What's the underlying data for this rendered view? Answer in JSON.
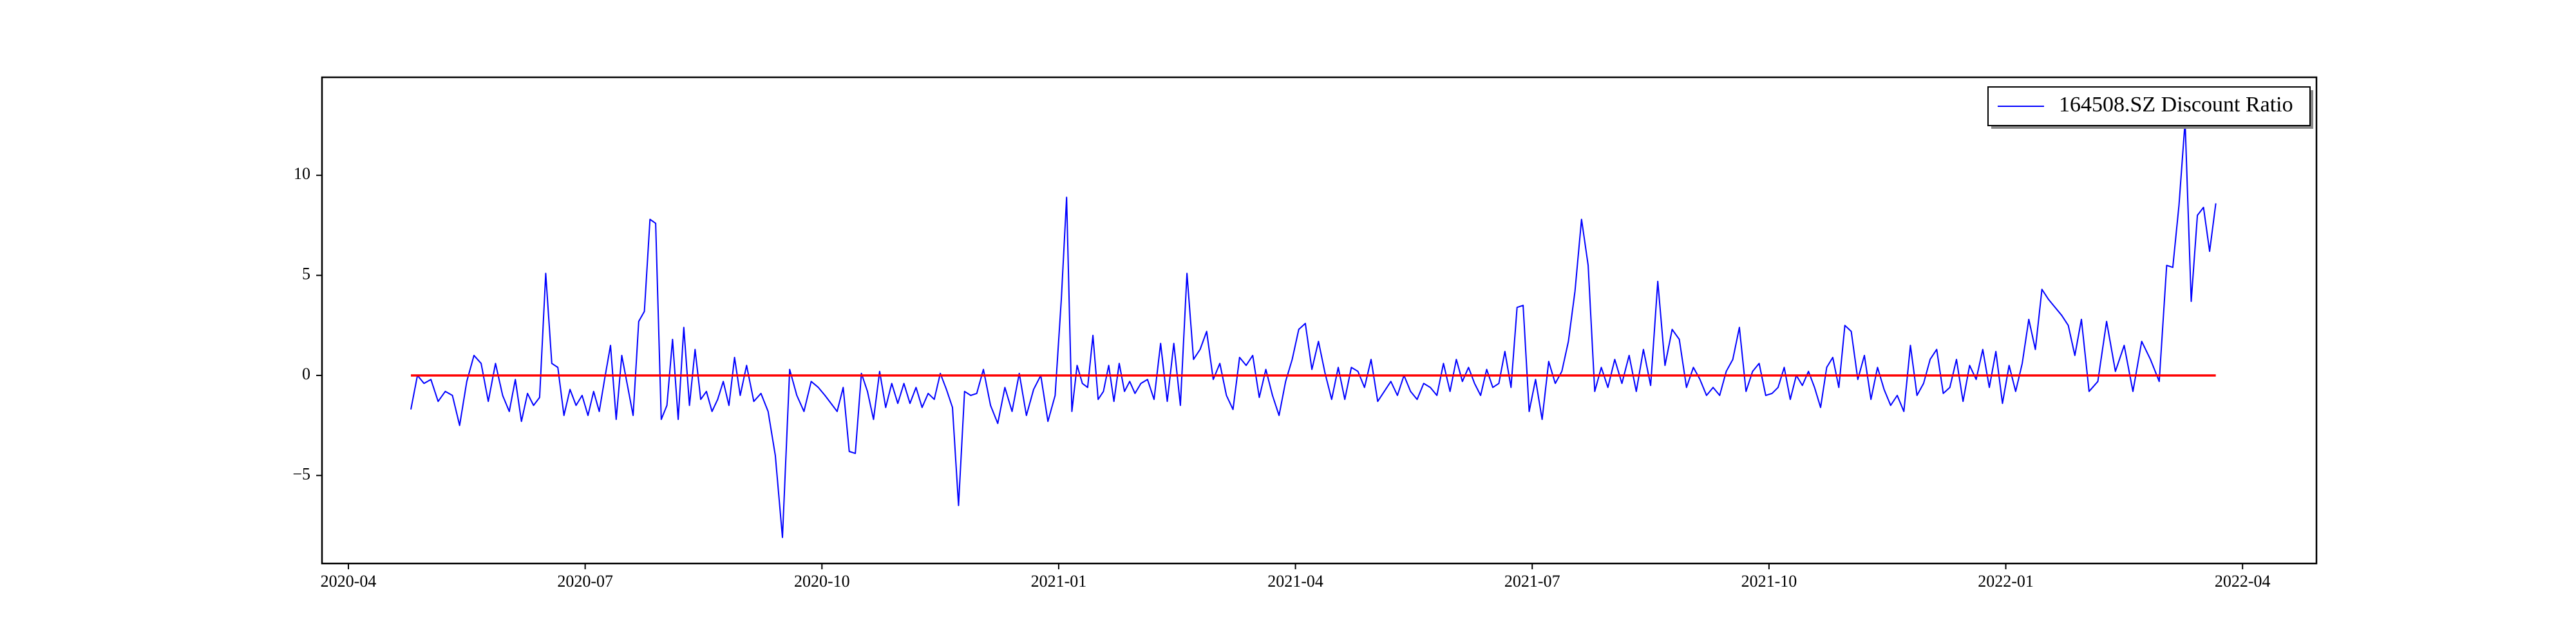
{
  "chart_data": {
    "type": "line",
    "x": [
      "2020-04",
      "2020-04",
      "2020-04",
      "2020-05",
      "2020-05",
      "2020-05",
      "2020-05",
      "2020-05",
      "2020-05",
      "2020-05",
      "2020-05",
      "2020-05",
      "2020-05",
      "2020-05",
      "2020-06",
      "2020-06",
      "2020-06",
      "2020-06",
      "2020-06",
      "2020-06",
      "2020-06",
      "2020-06",
      "2020-06",
      "2020-06",
      "2020-06",
      "2020-06",
      "2020-06",
      "2020-07",
      "2020-07",
      "2020-07",
      "2020-07",
      "2020-07",
      "2020-07",
      "2020-07",
      "2020-07",
      "2020-07",
      "2020-07",
      "2020-07",
      "2020-07",
      "2020-07",
      "2020-07",
      "2020-08",
      "2020-08",
      "2020-08",
      "2020-08",
      "2020-08",
      "2020-08",
      "2020-08",
      "2020-08",
      "2020-08",
      "2020-08",
      "2020-08",
      "2020-08",
      "2020-08",
      "2020-08",
      "2020-09",
      "2020-09",
      "2020-09",
      "2020-09",
      "2020-09",
      "2020-09",
      "2020-09",
      "2020-09",
      "2020-09",
      "2020-09",
      "2020-09",
      "2020-10",
      "2020-10",
      "2020-10",
      "2020-10",
      "2020-10",
      "2020-10",
      "2020-10",
      "2020-10",
      "2020-10",
      "2020-10",
      "2020-10",
      "2020-10",
      "2020-10",
      "2020-11",
      "2020-11",
      "2020-11",
      "2020-11",
      "2020-11",
      "2020-11",
      "2020-11",
      "2020-11",
      "2020-11",
      "2020-11",
      "2020-11",
      "2020-11",
      "2020-11",
      "2020-12",
      "2020-12",
      "2020-12",
      "2020-12",
      "2020-12",
      "2020-12",
      "2020-12",
      "2020-12",
      "2020-12",
      "2020-12",
      "2020-12",
      "2021-01",
      "2021-01",
      "2021-01",
      "2021-01",
      "2021-01",
      "2021-01",
      "2021-01",
      "2021-01",
      "2021-01",
      "2021-01",
      "2021-01",
      "2021-01",
      "2021-01",
      "2021-01",
      "2021-01",
      "2021-02",
      "2021-02",
      "2021-02",
      "2021-02",
      "2021-02",
      "2021-02",
      "2021-02",
      "2021-02",
      "2021-02",
      "2021-02",
      "2021-02",
      "2021-02",
      "2021-03",
      "2021-03",
      "2021-03",
      "2021-03",
      "2021-03",
      "2021-03",
      "2021-03",
      "2021-03",
      "2021-03",
      "2021-03",
      "2021-03",
      "2021-03",
      "2021-04",
      "2021-04",
      "2021-04",
      "2021-04",
      "2021-04",
      "2021-04",
      "2021-04",
      "2021-04",
      "2021-04",
      "2021-04",
      "2021-04",
      "2021-04",
      "2021-05",
      "2021-05",
      "2021-05",
      "2021-05",
      "2021-05",
      "2021-05",
      "2021-05",
      "2021-05",
      "2021-05",
      "2021-05",
      "2021-05",
      "2021-05",
      "2021-06",
      "2021-06",
      "2021-06",
      "2021-06",
      "2021-06",
      "2021-06",
      "2021-06",
      "2021-06",
      "2021-06",
      "2021-06",
      "2021-06",
      "2021-06",
      "2021-06",
      "2021-07",
      "2021-07",
      "2021-07",
      "2021-07",
      "2021-07",
      "2021-07",
      "2021-07",
      "2021-07",
      "2021-07",
      "2021-07",
      "2021-07",
      "2021-07",
      "2021-08",
      "2021-08",
      "2021-08",
      "2021-08",
      "2021-08",
      "2021-08",
      "2021-08",
      "2021-08",
      "2021-08",
      "2021-08",
      "2021-08",
      "2021-09",
      "2021-09",
      "2021-09",
      "2021-09",
      "2021-09",
      "2021-09",
      "2021-09",
      "2021-09",
      "2021-09",
      "2021-09",
      "2021-09",
      "2021-09",
      "2021-10",
      "2021-10",
      "2021-10",
      "2021-10",
      "2021-10",
      "2021-10",
      "2021-10",
      "2021-10",
      "2021-10",
      "2021-10",
      "2021-10",
      "2021-10",
      "2021-10",
      "2021-11",
      "2021-11",
      "2021-11",
      "2021-11",
      "2021-11",
      "2021-11",
      "2021-11",
      "2021-11",
      "2021-11",
      "2021-11",
      "2021-11",
      "2021-11",
      "2021-12",
      "2021-12",
      "2021-12",
      "2021-12",
      "2021-12",
      "2021-12",
      "2021-12",
      "2021-12",
      "2021-12",
      "2021-12",
      "2021-12",
      "2021-12",
      "2022-01",
      "2022-01",
      "2022-01",
      "2022-01",
      "2022-01",
      "2022-01",
      "2022-01",
      "2022-01",
      "2022-01",
      "2022-01",
      "2022-01",
      "2022-01",
      "2022-02",
      "2022-02",
      "2022-02",
      "2022-02",
      "2022-02",
      "2022-02",
      "2022-02",
      "2022-02",
      "2022-02",
      "2022-03",
      "2022-03",
      "2022-03",
      "2022-03",
      "2022-03",
      "2022-03",
      "2022-03",
      "2022-03",
      "2022-03"
    ],
    "series": [
      {
        "name": "164508.SZ Discount Ratio",
        "color": "#0000ff",
        "values": [
          -1.7,
          0.0,
          -0.4,
          -0.2,
          -1.3,
          -0.8,
          -1.0,
          -2.5,
          -0.3,
          1.0,
          0.6,
          -1.3,
          0.6,
          -1.0,
          -1.8,
          -0.2,
          -2.3,
          -0.9,
          -1.5,
          -1.1,
          5.1,
          0.6,
          0.4,
          -2.0,
          -0.7,
          -1.5,
          -1.0,
          -2.0,
          -0.8,
          -1.8,
          -0.1,
          1.5,
          -2.2,
          1.0,
          -0.5,
          -2.0,
          2.7,
          3.2,
          7.8,
          7.6,
          -2.2,
          -1.5,
          1.8,
          -2.2,
          2.4,
          -1.5,
          1.3,
          -1.2,
          -0.8,
          -1.8,
          -1.2,
          -0.3,
          -1.5,
          0.9,
          -1.0,
          0.5,
          -1.3,
          -0.9,
          -1.8,
          -4.0,
          -8.1,
          0.3,
          -1.0,
          -1.8,
          -0.3,
          -0.6,
          -1.0,
          -1.4,
          -1.8,
          -0.6,
          -3.8,
          -3.9,
          0.1,
          -0.8,
          -2.2,
          0.2,
          -1.6,
          -0.4,
          -1.4,
          -0.4,
          -1.4,
          -0.6,
          -1.6,
          -0.9,
          -1.2,
          0.1,
          -0.7,
          -1.6,
          -6.5,
          -0.8,
          -1.0,
          -0.9,
          0.3,
          -1.5,
          -2.4,
          -0.6,
          -1.8,
          0.1,
          -2.0,
          -0.7,
          0.0,
          -2.3,
          -1.0,
          3.8,
          8.9,
          -1.8,
          0.5,
          -0.4,
          -0.6,
          2.0,
          -1.2,
          -0.8,
          0.5,
          -1.3,
          0.6,
          -0.8,
          -0.3,
          -0.9,
          -0.4,
          -0.2,
          -1.2,
          1.6,
          -1.3,
          1.6,
          -1.5,
          5.1,
          0.8,
          1.3,
          2.2,
          -0.2,
          0.6,
          -1.0,
          -1.7,
          0.9,
          0.5,
          1.0,
          -1.1,
          0.3,
          -1.0,
          -2.0,
          -0.3,
          0.8,
          2.3,
          2.6,
          0.3,
          1.7,
          0.1,
          -1.2,
          0.4,
          -1.2,
          0.4,
          0.2,
          -0.6,
          0.8,
          -1.3,
          -0.8,
          -0.3,
          -1.0,
          0.0,
          -0.8,
          -1.2,
          -0.4,
          -0.6,
          -1.0,
          0.6,
          -0.8,
          0.8,
          -0.3,
          0.4,
          -0.4,
          -1.0,
          0.3,
          -0.6,
          -0.4,
          1.2,
          -0.6,
          3.4,
          3.5,
          -1.8,
          -0.2,
          -2.2,
          0.7,
          -0.4,
          0.2,
          1.7,
          4.2,
          7.8,
          5.5,
          -0.8,
          0.4,
          -0.6,
          0.8,
          -0.4,
          1.0,
          -0.8,
          1.3,
          -0.5,
          4.7,
          0.5,
          2.3,
          1.8,
          -0.6,
          0.4,
          -0.2,
          -1.0,
          -0.6,
          -1.0,
          0.2,
          0.8,
          2.4,
          -0.8,
          0.2,
          0.6,
          -1.0,
          -0.9,
          -0.6,
          0.4,
          -1.2,
          0.0,
          -0.5,
          0.2,
          -0.6,
          -1.6,
          0.4,
          0.9,
          -0.6,
          2.5,
          2.2,
          -0.2,
          1.0,
          -1.2,
          0.4,
          -0.7,
          -1.5,
          -1.0,
          -1.8,
          1.5,
          -1.0,
          -0.4,
          0.8,
          1.3,
          -0.9,
          -0.6,
          0.8,
          -1.3,
          0.5,
          -0.2,
          1.3,
          -0.6,
          1.2,
          -1.4,
          0.5,
          -0.8,
          0.6,
          2.8,
          1.3,
          4.3,
          3.8,
          3.4,
          3.0,
          2.5,
          1.0,
          2.8,
          -0.8,
          -0.3,
          2.7,
          0.2,
          1.5,
          -0.8,
          1.7,
          0.8,
          -0.3,
          5.5,
          5.4,
          8.5,
          12.7,
          3.7,
          8.0,
          8.4,
          6.2,
          8.6
        ]
      }
    ],
    "hline": {
      "value": 0,
      "color": "#ff0000"
    },
    "xticks": [
      "2020-04",
      "2020-07",
      "2020-10",
      "2021-01",
      "2021-04",
      "2021-07",
      "2021-10",
      "2022-01",
      "2022-04"
    ],
    "ylim": [
      -9.4,
      14.9
    ],
    "yticks": [
      {
        "value": -5,
        "label": "−5"
      },
      0,
      5,
      10
    ],
    "legend": "upper right"
  }
}
